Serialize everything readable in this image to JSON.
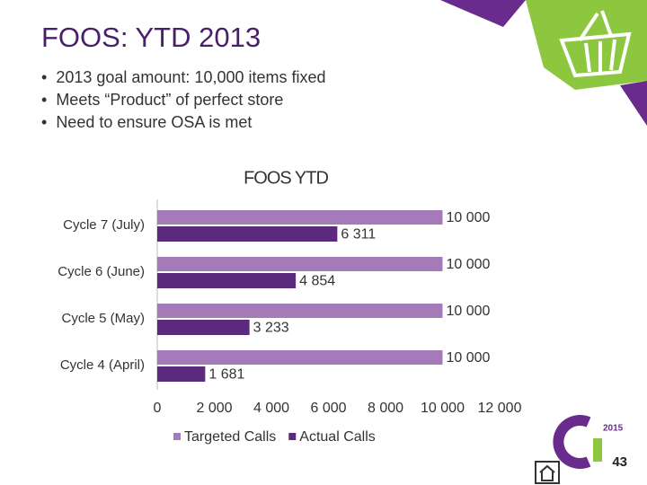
{
  "header": {
    "title": "FOOS: YTD 2013"
  },
  "bullets": [
    "2013 goal amount: 10,000 items fixed",
    "Meets “Product” of perfect store",
    "Need to ensure OSA is met"
  ],
  "chart_data": {
    "type": "hbar",
    "title": "FOOS YTD",
    "categories": [
      "Cycle 7 (July)",
      "Cycle 6 (June)",
      "Cycle 5 (May)",
      "Cycle 4 (April)"
    ],
    "series": [
      {
        "name": "Targeted Calls",
        "color": "#a57ab9",
        "values": [
          10000,
          10000,
          10000,
          10000
        ],
        "value_labels": [
          "10 000",
          "10 000",
          "10 000",
          "10 000"
        ]
      },
      {
        "name": "Actual Calls",
        "color": "#5b2a7e",
        "values": [
          6311,
          4854,
          3233,
          1681
        ],
        "value_labels": [
          "6 311",
          "4 854",
          "3 233",
          "1 681"
        ]
      }
    ],
    "xlim": [
      0,
      12000
    ],
    "xticks": [
      0,
      {
        "value": 2000,
        "label": "2 000"
      },
      {
        "value": 4000,
        "label": "4 000"
      },
      {
        "value": 6000,
        "label": "6 000"
      },
      {
        "value": 8000,
        "label": "8 000"
      },
      {
        "value": 10000,
        "label": "10 000"
      },
      {
        "value": 12000,
        "label": "12 000"
      }
    ],
    "legend": "bottom"
  },
  "logo": {
    "year": "2015"
  },
  "page_number": "43"
}
